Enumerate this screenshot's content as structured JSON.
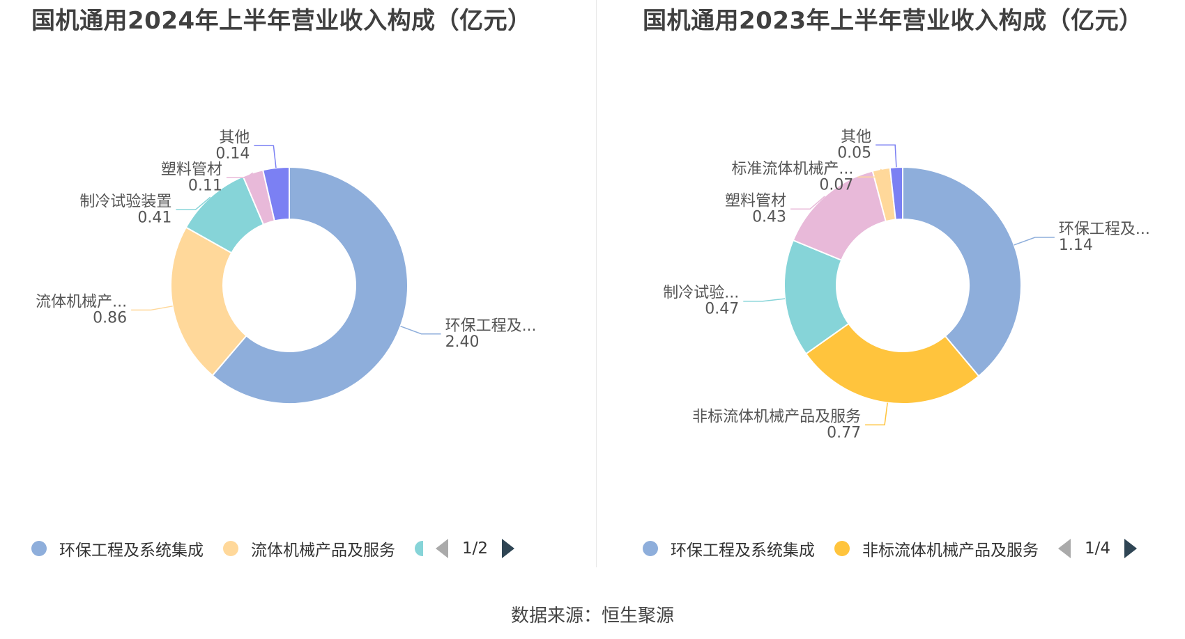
{
  "chart_data": [
    {
      "type": "pie",
      "title": "国机通用2024年上半年营业收入构成（亿元）",
      "unit": "亿元",
      "series": [
        {
          "name": "环保工程及系统集成",
          "display_label": "环保工程及...",
          "value": 2.4,
          "value_label": "2.40",
          "color": "#8eaedb"
        },
        {
          "name": "流体机械产品及服务",
          "display_label": "流体机械产...",
          "value": 0.86,
          "value_label": "0.86",
          "color": "#ffd89a"
        },
        {
          "name": "制冷试验装置",
          "display_label": "制冷试验装置",
          "value": 0.41,
          "value_label": "0.41",
          "color": "#86d4d8"
        },
        {
          "name": "塑料管材",
          "display_label": "塑料管材",
          "value": 0.11,
          "value_label": "0.11",
          "color": "#e8b9d9"
        },
        {
          "name": "其他",
          "display_label": "其他",
          "value": 0.14,
          "value_label": "0.14",
          "color": "#7b80f3"
        }
      ],
      "legend": {
        "position": "bottom",
        "visible_items": [
          "环保工程及系统集成",
          "流体机械产品及服务"
        ],
        "page": "1/2"
      }
    },
    {
      "type": "pie",
      "title": "国机通用2023年上半年营业收入构成（亿元）",
      "unit": "亿元",
      "series": [
        {
          "name": "环保工程及系统集成",
          "display_label": "环保工程及...",
          "value": 1.14,
          "value_label": "1.14",
          "color": "#8eaedb"
        },
        {
          "name": "非标流体机械产品及服务",
          "display_label": "非标流体机械产品及服务",
          "value": 0.77,
          "value_label": "0.77",
          "color": "#ffc43d"
        },
        {
          "name": "制冷试验装置",
          "display_label": "制冷试验...",
          "value": 0.47,
          "value_label": "0.47",
          "color": "#86d4d8"
        },
        {
          "name": "塑料管材",
          "display_label": "塑料管材",
          "value": 0.43,
          "value_label": "0.43",
          "color": "#e8b9d9"
        },
        {
          "name": "标准流体机械产品及服务",
          "display_label": "标准流体机械产...",
          "value": 0.07,
          "value_label": "0.07",
          "color": "#ffd89a"
        },
        {
          "name": "其他",
          "display_label": "其他",
          "value": 0.05,
          "value_label": "0.05",
          "color": "#7b80f3"
        }
      ],
      "legend": {
        "position": "bottom",
        "visible_items": [
          "环保工程及系统集成",
          "非标流体机械产品及服务"
        ],
        "page": "1/4"
      }
    }
  ],
  "footer": {
    "source": "数据来源：恒生聚源"
  }
}
